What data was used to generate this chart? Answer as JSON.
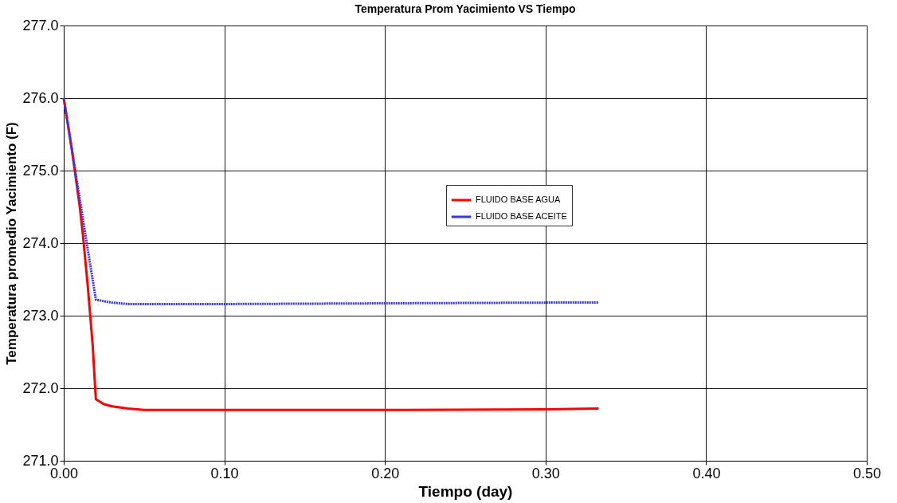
{
  "chart_data": {
    "type": "line",
    "title": "Temperatura Prom Yacimiento VS Tiempo",
    "xlabel": "Tiempo (day)",
    "ylabel": "Temperatura promedio Yacimiento (F)",
    "xlim": [
      0,
      0.5
    ],
    "xticks": [
      {
        "value": 0,
        "label": "0.00"
      },
      {
        "value": 0.1,
        "label": "0.10"
      },
      {
        "value": 0.2,
        "label": "0.20"
      },
      {
        "value": 0.3,
        "label": "0.30"
      },
      {
        "value": 0.4,
        "label": "0.40"
      },
      {
        "value": 0.5,
        "label": "0.50"
      }
    ],
    "ylim": [
      271,
      277
    ],
    "yticks": [
      {
        "value": 271,
        "label": "271.0"
      },
      {
        "value": 272,
        "label": "272.0"
      },
      {
        "value": 273,
        "label": "273.0"
      },
      {
        "value": 274,
        "label": "274.0"
      },
      {
        "value": 275,
        "label": "275.0"
      },
      {
        "value": 276,
        "label": "276.0"
      },
      {
        "value": 277,
        "label": "277.0"
      }
    ],
    "grid": true,
    "legend": "center",
    "marker": "none",
    "series": [
      {
        "name": "FLUIDO BASE AGUA",
        "color": "#ff0000",
        "line_style": "solid",
        "x": [
          0,
          0.005,
          0.01,
          0.012,
          0.015,
          0.018,
          0.02,
          0.025,
          0.03,
          0.04,
          0.05,
          0.07,
          0.1,
          0.2,
          0.3,
          0.333
        ],
        "values": [
          276.0,
          275.3,
          274.5,
          274.1,
          273.4,
          272.6,
          271.85,
          271.78,
          271.75,
          271.72,
          271.7,
          271.7,
          271.7,
          271.7,
          271.71,
          271.72
        ]
      },
      {
        "name": "FLUIDO BASE ACEITE",
        "color": "#3333ff",
        "line_style": "dotted",
        "x": [
          0,
          0.01,
          0.02,
          0.03,
          0.04,
          0.06,
          0.1,
          0.2,
          0.3,
          0.333
        ],
        "values": [
          276.0,
          274.6,
          273.22,
          273.18,
          273.16,
          273.16,
          273.16,
          273.17,
          273.18,
          273.18
        ]
      }
    ]
  }
}
